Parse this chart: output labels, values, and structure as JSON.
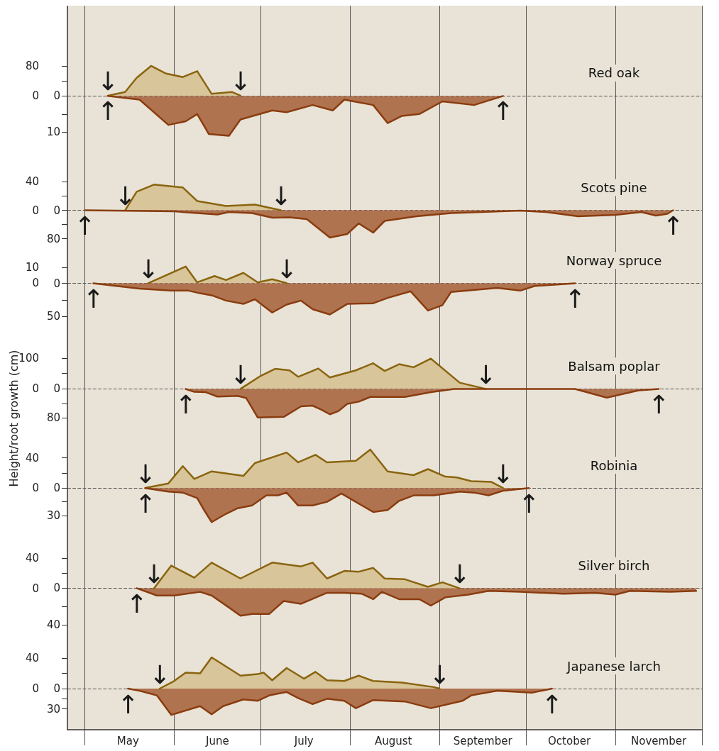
{
  "chart_data": [
    {
      "type": "area",
      "title": "Red oak",
      "grid": "x",
      "tick_labels": "y",
      "xlim": [
        "--04-25",
        "--12-01"
      ],
      "xticks": [
        {
          "value": "--05-01",
          "label": null
        },
        {
          "value": "--05-16",
          "label": "May"
        },
        {
          "value": "--06-01",
          "label": null
        },
        {
          "value": "--06-16",
          "label": "June"
        },
        {
          "value": "--07-01",
          "label": null
        },
        {
          "value": "--07-16",
          "label": "July"
        },
        {
          "value": "--08-01",
          "label": null
        },
        {
          "value": "--08-16",
          "label": "August"
        },
        {
          "value": "--09-01",
          "label": null
        },
        {
          "value": "--09-16",
          "label": "September"
        },
        {
          "value": "--10-01",
          "label": null
        },
        {
          "value": "--10-16",
          "label": "October"
        },
        {
          "value": "--11-01",
          "label": null
        },
        {
          "value": "--11-16",
          "label": "November"
        },
        {
          "value": "--12-01",
          "label": null
        }
      ],
      "ylim": [
        -166,
        242
      ],
      "yticks": [
        0,
        {
          "value": 40,
          "label": null
        },
        80
      ],
      "y2lim": [
        17,
        -25
      ],
      "y2ticks": [
        0,
        {
          "value": 5,
          "label": null
        },
        10
      ],
      "series": [
        {
          "color": "#d8c59a",
          "x": [
            "--05-09",
            "--05-15",
            "--05-19",
            "--05-24",
            "--05-29",
            "--06-04",
            "--06-09",
            "--06-14",
            "--06-21",
            "--06-24"
          ],
          "values": [
            0,
            10,
            48,
            80,
            60,
            50,
            66,
            5,
            10,
            0
          ]
        },
        {
          "color": "#b07350",
          "axis": "y2",
          "x": [
            "--05-09",
            "--05-20",
            "--05-30",
            "--06-05",
            "--06-09",
            "--06-13",
            "--06-20",
            "--06-24",
            "--07-05",
            "--07-10",
            "--07-19",
            "--07-26",
            "--07-30",
            "--08-09",
            "--08-14",
            "--08-19",
            "--08-25",
            "--09-02",
            "--09-13",
            "--09-23"
          ],
          "values": [
            0,
            1,
            8,
            7,
            5,
            10.5,
            11,
            6.5,
            4,
            4.5,
            2.5,
            4,
            1,
            2.5,
            7.5,
            5.5,
            5,
            1.5,
            2.5,
            0
          ]
        }
      ],
      "ref_lines": [
        {
          "axis": "y",
          "value": 0,
          "color": "#555555",
          "line_style": "dashed"
        }
      ],
      "annotations": [
        {
          "text": "↓",
          "x": "--05-09",
          "y": 0
        },
        {
          "text": "↓",
          "x": "--06-24",
          "y": 0
        },
        {
          "text": "↑",
          "x": "--05-09",
          "y": 0
        },
        {
          "text": "↑",
          "x": "--09-23",
          "y": 0
        }
      ]
    },
    {
      "type": "area",
      "title": "Scots pine",
      "grid": "x",
      "tick_labels": "y",
      "xlim": [
        "--04-25",
        "--12-01"
      ],
      "xticks": [
        {
          "value": "--05-01",
          "label": null
        },
        {
          "value": "--05-16",
          "label": "May"
        },
        {
          "value": "--06-01",
          "label": null
        },
        {
          "value": "--06-16",
          "label": "June"
        },
        {
          "value": "--07-01",
          "label": null
        },
        {
          "value": "--07-16",
          "label": "July"
        },
        {
          "value": "--08-01",
          "label": null
        },
        {
          "value": "--08-16",
          "label": "August"
        },
        {
          "value": "--09-01",
          "label": null
        },
        {
          "value": "--09-16",
          "label": "September"
        },
        {
          "value": "--10-01",
          "label": null
        },
        {
          "value": "--10-16",
          "label": "October"
        },
        {
          "value": "--11-01",
          "label": null
        },
        {
          "value": "--11-16",
          "label": "November"
        },
        {
          "value": "--12-01",
          "label": null
        }
      ],
      "ylim": [
        -53,
        74
      ],
      "yticks": [
        0,
        {
          "value": 20,
          "label": null
        },
        40
      ],
      "y2lim": [
        107,
        -149
      ],
      "y2ticks": [
        0,
        {
          "value": 40,
          "label": null
        },
        80
      ],
      "series": [
        {
          "color": "#d8c59a",
          "x": [
            "--05-15",
            "--05-19",
            "--05-25",
            "--06-04",
            "--06-09",
            "--06-19",
            "--06-29",
            "--07-08"
          ],
          "values": [
            0,
            26,
            36,
            32,
            13,
            6,
            8,
            0
          ]
        },
        {
          "color": "#b07350",
          "axis": "y2",
          "x": [
            "--05-01",
            "--06-01",
            "--06-16",
            "--06-20",
            "--06-28",
            "--07-05",
            "--07-11",
            "--07-17",
            "--07-25",
            "--07-31",
            "--08-04",
            "--08-09",
            "--08-13",
            "--08-24",
            "--09-05",
            "--09-29",
            "--10-08",
            "--10-19",
            "--11-01",
            "--11-10",
            "--11-15",
            "--11-19",
            "--11-21"
          ],
          "values": [
            0,
            3,
            12,
            5,
            8,
            21,
            20,
            25,
            77,
            67,
            37,
            63,
            30,
            17,
            8,
            1,
            5,
            17,
            13,
            5,
            15,
            10,
            0
          ]
        }
      ],
      "ref_lines": [
        {
          "axis": "y",
          "value": 0,
          "color": "#555555",
          "line_style": "dashed"
        }
      ],
      "annotations": [
        {
          "text": "↓",
          "x": "--05-15",
          "y": 0
        },
        {
          "text": "↓",
          "x": "--07-08",
          "y": 0
        },
        {
          "text": "↑",
          "x": "--05-01",
          "y": 0
        },
        {
          "text": "↑",
          "x": "--11-21",
          "y": 0
        }
      ]
    },
    {
      "type": "area",
      "title": "Norway spruce",
      "grid": "x",
      "tick_labels": "y",
      "xlim": [
        "--04-25",
        "--12-01"
      ],
      "xticks": [
        {
          "value": "--05-01",
          "label": null
        },
        {
          "value": "--05-16",
          "label": "May"
        },
        {
          "value": "--06-01",
          "label": null
        },
        {
          "value": "--06-16",
          "label": "June"
        },
        {
          "value": "--07-01",
          "label": null
        },
        {
          "value": "--07-16",
          "label": "July"
        },
        {
          "value": "--08-01",
          "label": null
        },
        {
          "value": "--08-16",
          "label": "August"
        },
        {
          "value": "--09-01",
          "label": null
        },
        {
          "value": "--09-16",
          "label": "September"
        },
        {
          "value": "--10-01",
          "label": null
        },
        {
          "value": "--10-16",
          "label": "October"
        },
        {
          "value": "--11-01",
          "label": null
        },
        {
          "value": "--11-16",
          "label": "November"
        },
        {
          "value": "--12-01",
          "label": null
        }
      ],
      "ylim": [
        -36,
        22
      ],
      "yticks": [
        0,
        10
      ],
      "y2lim": [
        86,
        -53
      ],
      "y2ticks": [
        0,
        {
          "value": 25,
          "label": null
        },
        50
      ],
      "series": [
        {
          "color": "#d8c59a",
          "x": [
            "--05-23",
            "--06-05",
            "--06-09",
            "--06-15",
            "--06-19",
            "--06-25",
            "--06-30",
            "--07-05",
            "--07-10"
          ],
          "values": [
            0,
            10.5,
            0.5,
            4.5,
            2,
            6.5,
            0.5,
            2.5,
            0
          ]
        },
        {
          "color": "#b07350",
          "axis": "y2",
          "x": [
            "--05-04",
            "--05-20",
            "--05-31",
            "--06-06",
            "--06-10",
            "--06-14",
            "--06-19",
            "--06-25",
            "--06-29",
            "--07-05",
            "--07-10",
            "--07-15",
            "--07-19",
            "--07-25",
            "--07-31",
            "--08-09",
            "--08-14",
            "--08-22",
            "--08-28",
            "--09-02",
            "--09-05",
            "--09-21",
            "--09-29",
            "--10-04",
            "--10-18"
          ],
          "values": [
            0,
            8,
            11,
            11,
            15,
            18,
            26,
            31,
            24,
            44,
            32,
            26,
            39,
            47,
            31,
            30,
            22,
            12,
            41,
            33,
            13,
            7,
            11,
            4,
            0
          ]
        }
      ],
      "ref_lines": [
        {
          "axis": "y",
          "value": 0,
          "color": "#555555",
          "line_style": "dashed"
        }
      ],
      "annotations": [
        {
          "text": "↓",
          "x": "--05-23",
          "y": 0
        },
        {
          "text": "↓",
          "x": "--07-10",
          "y": 0
        },
        {
          "text": "↑",
          "x": "--05-04",
          "y": 0
        },
        {
          "text": "↑",
          "x": "--10-18",
          "y": 0
        }
      ]
    },
    {
      "type": "area",
      "title": "Balsam poplar",
      "ylabel": "Height/root growth (cm)",
      "grid": "x",
      "tick_labels": "y",
      "xlim": [
        "--04-25",
        "--12-01"
      ],
      "xticks": [
        {
          "value": "--05-01",
          "label": null
        },
        {
          "value": "--05-16",
          "label": "May"
        },
        {
          "value": "--06-01",
          "label": null
        },
        {
          "value": "--06-16",
          "label": "June"
        },
        {
          "value": "--07-01",
          "label": null
        },
        {
          "value": "--07-16",
          "label": "July"
        },
        {
          "value": "--08-01",
          "label": null
        },
        {
          "value": "--08-16",
          "label": "August"
        },
        {
          "value": "--09-01",
          "label": null
        },
        {
          "value": "--09-16",
          "label": "September"
        },
        {
          "value": "--10-01",
          "label": null
        },
        {
          "value": "--10-16",
          "label": "October"
        },
        {
          "value": "--11-01",
          "label": null
        },
        {
          "value": "--11-16",
          "label": "November"
        },
        {
          "value": "--12-01",
          "label": null
        }
      ],
      "ylim": [
        -160,
        157
      ],
      "yticks": [
        0,
        {
          "value": 50,
          "label": null
        },
        100
      ],
      "y2lim": [
        136,
        -134
      ],
      "y2ticks": [
        0,
        {
          "value": 40,
          "label": null
        },
        80
      ],
      "series": [
        {
          "color": "#d8c59a",
          "x": [
            "--06-24",
            "--07-01",
            "--07-06",
            "--07-11",
            "--07-14",
            "--07-21",
            "--07-25",
            "--08-03",
            "--08-09",
            "--08-13",
            "--08-18",
            "--08-23",
            "--08-29",
            "--09-08",
            "--09-17"
          ],
          "values": [
            0,
            42,
            65,
            60,
            39,
            66,
            37,
            60,
            83,
            58,
            80,
            70,
            98,
            20,
            0
          ]
        },
        {
          "color": "#b07350",
          "axis": "y2",
          "x": [
            "--06-05",
            "--06-08",
            "--06-12",
            "--06-16",
            "--06-23",
            "--06-26",
            "--06-30",
            "--07-09",
            "--07-15",
            "--07-19",
            "--07-22",
            "--07-25",
            "--07-28",
            "--07-31",
            "--08-04",
            "--08-08",
            "--08-20",
            "--08-29",
            "--09-06",
            "--10-18",
            "--10-29",
            "--11-09",
            "--11-16"
          ],
          "values": [
            0,
            8,
            9,
            21,
            19,
            25,
            79,
            77,
            48,
            46,
            57,
            70,
            61,
            41,
            35,
            22,
            22,
            9,
            0,
            0,
            24,
            4,
            0
          ]
        }
      ],
      "ref_lines": [
        {
          "axis": "y",
          "value": 0,
          "color": "#555555",
          "line_style": "dashed"
        }
      ],
      "annotations": [
        {
          "text": "↓",
          "x": "--06-24",
          "y": 0
        },
        {
          "text": "↓",
          "x": "--09-17",
          "y": 0
        },
        {
          "text": "↑",
          "x": "--06-05",
          "y": 0
        },
        {
          "text": "↑",
          "x": "--11-16",
          "y": 0
        }
      ]
    },
    {
      "type": "area",
      "title": "Robinia",
      "grid": "x",
      "tick_labels": "y",
      "xlim": [
        "--04-25",
        "--12-01"
      ],
      "xticks": [
        {
          "value": "--05-01",
          "label": null
        },
        {
          "value": "--05-16",
          "label": "May"
        },
        {
          "value": "--06-01",
          "label": null
        },
        {
          "value": "--06-16",
          "label": "June"
        },
        {
          "value": "--07-01",
          "label": null
        },
        {
          "value": "--07-16",
          "label": "July"
        },
        {
          "value": "--08-01",
          "label": null
        },
        {
          "value": "--08-16",
          "label": "August"
        },
        {
          "value": "--09-01",
          "label": null
        },
        {
          "value": "--09-16",
          "label": "September"
        },
        {
          "value": "--10-01",
          "label": null
        },
        {
          "value": "--10-16",
          "label": "October"
        },
        {
          "value": "--11-01",
          "label": null
        },
        {
          "value": "--11-16",
          "label": "November"
        },
        {
          "value": "--12-01",
          "label": null
        }
      ],
      "ylim": [
        -65,
        66
      ],
      "yticks": [
        0,
        {
          "value": 20,
          "label": null
        },
        40
      ],
      "y2lim": [
        53,
        -54
      ],
      "y2ticks": [
        0,
        {
          "value": 15,
          "label": null
        },
        30
      ],
      "series": [
        {
          "color": "#d8c59a",
          "x": [
            "--05-22",
            "--05-30",
            "--06-04",
            "--06-08",
            "--06-14",
            "--06-25",
            "--06-29",
            "--07-10",
            "--07-14",
            "--07-20",
            "--07-24",
            "--08-03",
            "--08-08",
            "--08-14",
            "--08-23",
            "--08-28",
            "--09-03",
            "--09-07",
            "--09-12",
            "--09-19",
            "--09-23"
          ],
          "values": [
            0,
            6,
            29,
            12,
            22,
            16,
            33,
            47,
            34,
            44,
            34,
            36,
            51,
            22,
            17,
            25,
            15,
            14,
            9,
            8,
            0
          ]
        },
        {
          "color": "#b07350",
          "axis": "y2",
          "x": [
            "--05-22",
            "--05-30",
            "--06-04",
            "--06-09",
            "--06-11",
            "--06-14",
            "--06-19",
            "--06-23",
            "--06-28",
            "--07-03",
            "--07-07",
            "--07-10",
            "--07-14",
            "--07-19",
            "--07-24",
            "--07-29",
            "--08-09",
            "--08-14",
            "--08-18",
            "--08-23",
            "--08-30",
            "--09-08",
            "--09-13",
            "--09-18",
            "--09-23",
            "--10-02"
          ],
          "values": [
            0,
            4,
            5,
            11,
            22,
            37,
            28,
            22,
            19,
            8,
            8,
            5,
            19,
            19,
            15,
            6,
            26,
            24,
            14,
            8,
            8,
            4,
            5,
            8,
            3,
            0
          ]
        }
      ],
      "ref_lines": [
        {
          "axis": "y",
          "value": 0,
          "color": "#555555",
          "line_style": "dashed"
        }
      ],
      "annotations": [
        {
          "text": "↓",
          "x": "--05-22",
          "y": 0
        },
        {
          "text": "↓",
          "x": "--09-23",
          "y": 0
        },
        {
          "text": "↑",
          "x": "--05-22",
          "y": 0
        },
        {
          "text": "↑",
          "x": "--10-02",
          "y": 0
        }
      ]
    },
    {
      "type": "area",
      "title": "Silver birch",
      "grid": "x",
      "tick_labels": "y",
      "xlim": [
        "--04-25",
        "--12-01"
      ],
      "xticks": [
        {
          "value": "--05-01",
          "label": null
        },
        {
          "value": "--05-16",
          "label": "May"
        },
        {
          "value": "--06-01",
          "label": null
        },
        {
          "value": "--06-16",
          "label": "June"
        },
        {
          "value": "--07-01",
          "label": null
        },
        {
          "value": "--07-16",
          "label": "July"
        },
        {
          "value": "--08-01",
          "label": null
        },
        {
          "value": "--08-16",
          "label": "August"
        },
        {
          "value": "--09-01",
          "label": null
        },
        {
          "value": "--09-16",
          "label": "September"
        },
        {
          "value": "--10-01",
          "label": null
        },
        {
          "value": "--10-16",
          "label": "October"
        },
        {
          "value": "--11-01",
          "label": null
        },
        {
          "value": "--11-16",
          "label": "November"
        },
        {
          "value": "--12-01",
          "label": null
        }
      ],
      "ylim": [
        -64,
        68
      ],
      "yticks": [
        0,
        {
          "value": 20,
          "label": null
        },
        40
      ],
      "y2lim": [
        53,
        -56
      ],
      "y2ticks": [
        0,
        {
          "value": 20,
          "label": null
        },
        40
      ],
      "series": [
        {
          "color": "#d8c59a",
          "x": [
            "--05-25",
            "--05-31",
            "--06-08",
            "--06-14",
            "--06-24",
            "--07-05",
            "--07-15",
            "--07-19",
            "--07-24",
            "--07-30",
            "--08-04",
            "--08-09",
            "--08-13",
            "--08-20",
            "--08-28",
            "--09-02",
            "--09-08"
          ],
          "values": [
            0,
            30,
            14,
            34,
            13,
            34,
            29,
            34,
            13,
            23,
            22,
            27,
            13,
            12,
            2,
            8,
            0
          ]
        },
        {
          "color": "#b07350",
          "axis": "y2",
          "x": [
            "--05-19",
            "--05-26",
            "--06-01",
            "--06-10",
            "--06-14",
            "--06-20",
            "--06-24",
            "--06-28",
            "--07-04",
            "--07-09",
            "--07-15",
            "--07-24",
            "--07-30",
            "--08-05",
            "--08-09",
            "--08-12",
            "--08-18",
            "--08-25",
            "--08-29",
            "--09-03",
            "--09-11",
            "--09-18",
            "--09-29",
            "--10-14",
            "--10-25",
            "--11-01",
            "--11-06",
            "--11-20",
            "--11-29"
          ],
          "values": [
            0,
            8,
            8,
            4,
            8,
            21,
            30,
            28,
            28,
            14,
            17,
            5,
            5,
            6,
            12,
            4,
            12,
            12,
            19,
            10,
            7,
            3,
            4,
            6,
            5,
            7,
            3,
            4,
            3
          ]
        }
      ],
      "ref_lines": [
        {
          "axis": "y",
          "value": 0,
          "color": "#555555",
          "line_style": "dashed"
        }
      ],
      "annotations": [
        {
          "text": "↓",
          "x": "--05-25",
          "y": 0
        },
        {
          "text": "↓",
          "x": "--09-08",
          "y": 0
        },
        {
          "text": "↑",
          "x": "--05-19",
          "y": 0
        }
      ]
    },
    {
      "type": "area",
      "title": "Japanese larch",
      "grid": "x",
      "xlim": [
        "--04-25",
        "--12-01"
      ],
      "xticks": [
        {
          "value": "--05-01",
          "label": null
        },
        {
          "value": "--05-16",
          "label": "May"
        },
        {
          "value": "--06-01",
          "label": null
        },
        {
          "value": "--06-16",
          "label": "June"
        },
        {
          "value": "--07-01",
          "label": null
        },
        {
          "value": "--07-16",
          "label": "July"
        },
        {
          "value": "--08-01",
          "label": null
        },
        {
          "value": "--08-16",
          "label": "August"
        },
        {
          "value": "--09-01",
          "label": null
        },
        {
          "value": "--09-16",
          "label": "September"
        },
        {
          "value": "--10-01",
          "label": null
        },
        {
          "value": "--10-16",
          "label": "October"
        },
        {
          "value": "--11-01",
          "label": null
        },
        {
          "value": "--11-16",
          "label": "November"
        },
        {
          "value": "--12-01",
          "label": null
        }
      ],
      "ylim": [
        -54,
        68
      ],
      "yticks": [
        0,
        {
          "value": 20,
          "label": null
        },
        40
      ],
      "y2lim": [
        61,
        -77
      ],
      "y2ticks": [
        0,
        {
          "value": 15,
          "label": null
        },
        30
      ],
      "series": [
        {
          "color": "#d8c59a",
          "x": [
            "--05-27",
            "--06-01",
            "--06-05",
            "--06-10",
            "--06-14",
            "--06-24",
            "--06-30",
            "--07-02",
            "--07-05",
            "--07-10",
            "--07-16",
            "--07-20",
            "--07-24",
            "--07-30",
            "--08-04",
            "--08-09",
            "--08-19",
            "--08-30",
            "--09-01"
          ],
          "values": [
            0,
            10,
            21,
            20,
            41,
            17,
            19,
            21,
            11,
            27,
            13,
            22,
            11,
            10,
            17,
            10,
            8,
            2,
            0
          ]
        },
        {
          "color": "#b07350",
          "axis": "y2",
          "x": [
            "--05-16",
            "--05-20",
            "--05-26",
            "--05-31",
            "--06-10",
            "--06-14",
            "--06-18",
            "--06-25",
            "--06-30",
            "--07-04",
            "--07-10",
            "--07-14",
            "--07-19",
            "--07-24",
            "--07-30",
            "--08-03",
            "--08-09",
            "--08-20",
            "--08-29",
            "--09-09",
            "--09-12",
            "--09-21",
            "--10-03",
            "--10-10"
          ],
          "values": [
            0,
            3,
            10,
            39,
            26,
            38,
            26,
            16,
            18,
            10,
            5,
            14,
            23,
            15,
            18,
            29,
            17,
            19,
            29,
            18,
            10,
            3,
            6,
            0
          ]
        }
      ],
      "ref_lines": [
        {
          "axis": "y",
          "value": 0,
          "color": "#555555",
          "line_style": "dashed"
        }
      ],
      "annotations": [
        {
          "text": "↓",
          "x": "--05-27",
          "y": 0
        },
        {
          "text": "↓",
          "x": "--09-01",
          "y": 0
        },
        {
          "text": "↑",
          "x": "--05-16",
          "y": 0
        },
        {
          "text": "↑",
          "x": "--10-10",
          "y": 0
        }
      ]
    }
  ]
}
